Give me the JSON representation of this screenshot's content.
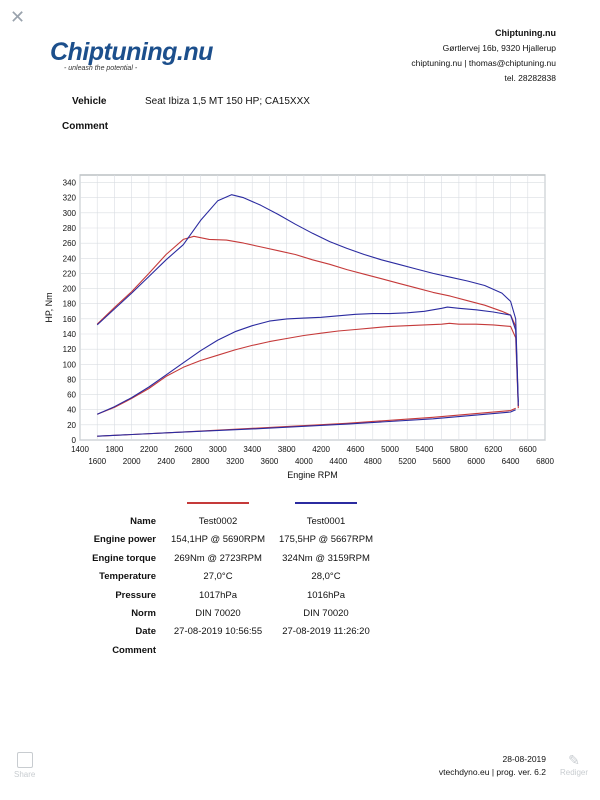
{
  "header": {
    "logo_text": "Chiptuning.nu",
    "logo_tagline": "- unleash the potential -",
    "company_name": "Chiptuning.nu",
    "address": "Gørtlervej 16b, 9320 Hjallerup",
    "web_email": "chiptuning.nu | thomas@chiptuning.nu",
    "phone": "tel. 28282838"
  },
  "vehicle": {
    "label": "Vehicle",
    "value": "Seat Ibiza 1,5 MT 150 HP; CA15XXX"
  },
  "comment_top": {
    "label": "Comment"
  },
  "chart_data": {
    "type": "line",
    "xlabel": "Engine RPM",
    "ylabel": "HP, Nm",
    "xlim": [
      1400,
      6800
    ],
    "ylim": [
      0,
      350
    ],
    "x_ticks_top": [
      "1400",
      "1800",
      "2200",
      "2600",
      "3000",
      "3400",
      "3800",
      "4200",
      "4600",
      "5000",
      "5400",
      "5800",
      "6200",
      "6600"
    ],
    "x_ticks_bottom": [
      "1600",
      "2000",
      "2400",
      "2800",
      "3200",
      "3600",
      "4000",
      "4400",
      "4800",
      "5200",
      "5600",
      "6000",
      "6400",
      "6800"
    ],
    "y_ticks": [
      "0",
      "20",
      "40",
      "60",
      "80",
      "100",
      "120",
      "140",
      "160",
      "180",
      "200",
      "220",
      "240",
      "260",
      "280",
      "300",
      "320",
      "340"
    ],
    "grid": true,
    "colors": {
      "test0002": "#c53a3a",
      "test0001": "#2b2ba0"
    },
    "series": [
      {
        "name": "Test0002",
        "quantity": "torque",
        "x": [
          1600,
          1800,
          2000,
          2200,
          2400,
          2600,
          2723,
          2900,
          3100,
          3300,
          3500,
          3700,
          3900,
          4100,
          4300,
          4500,
          4700,
          4900,
          5100,
          5300,
          5500,
          5700,
          5900,
          6100,
          6300,
          6400,
          6460,
          6490
        ],
        "y": [
          153,
          175,
          196,
          220,
          245,
          265,
          269,
          265,
          264,
          260,
          255,
          250,
          245,
          238,
          232,
          225,
          219,
          213,
          207,
          201,
          195,
          190,
          184,
          178,
          170,
          165,
          150,
          45
        ]
      },
      {
        "name": "Test0002",
        "quantity": "power",
        "x": [
          1600,
          1800,
          2000,
          2200,
          2400,
          2600,
          2800,
          3000,
          3200,
          3400,
          3600,
          3800,
          4000,
          4200,
          4400,
          4600,
          4800,
          5000,
          5200,
          5400,
          5600,
          5690,
          5800,
          6000,
          6200,
          6400,
          6460,
          6490
        ],
        "y": [
          34,
          43,
          55,
          68,
          84,
          96,
          105,
          112,
          119,
          125,
          130,
          134,
          138,
          141,
          144,
          146,
          148,
          150,
          151,
          152,
          153,
          154.1,
          153,
          153,
          152,
          150,
          135,
          42
        ]
      },
      {
        "name": "Test0002",
        "quantity": "loss",
        "x": [
          1600,
          2500,
          3500,
          4500,
          5500,
          6400,
          6460
        ],
        "y": [
          5,
          10,
          16,
          22,
          30,
          39,
          42
        ]
      },
      {
        "name": "Test0001",
        "quantity": "torque",
        "x": [
          1600,
          1800,
          2000,
          2200,
          2400,
          2600,
          2800,
          3000,
          3159,
          3300,
          3500,
          3700,
          3900,
          4100,
          4300,
          4500,
          4700,
          4900,
          5100,
          5300,
          5500,
          5700,
          5900,
          6100,
          6300,
          6400,
          6460,
          6490
        ],
        "y": [
          152,
          173,
          194,
          216,
          238,
          258,
          290,
          316,
          324,
          320,
          310,
          298,
          285,
          273,
          262,
          253,
          245,
          238,
          232,
          226,
          220,
          215,
          210,
          204,
          194,
          183,
          160,
          50
        ]
      },
      {
        "name": "Test0001",
        "quantity": "power",
        "x": [
          1600,
          1800,
          2000,
          2200,
          2400,
          2600,
          2800,
          3000,
          3200,
          3400,
          3600,
          3800,
          4000,
          4200,
          4400,
          4600,
          4800,
          5000,
          5200,
          5400,
          5600,
          5667,
          5800,
          6000,
          6200,
          6400,
          6460,
          6490
        ],
        "y": [
          34,
          44,
          56,
          70,
          86,
          102,
          118,
          132,
          143,
          151,
          157,
          160,
          161,
          162,
          164,
          166,
          167,
          167,
          168,
          170,
          174,
          175.5,
          174,
          172,
          169,
          165,
          145,
          45
        ]
      },
      {
        "name": "Test0001",
        "quantity": "loss",
        "x": [
          1600,
          2500,
          3500,
          4500,
          5500,
          6400,
          6460
        ],
        "y": [
          5,
          10,
          15,
          21,
          28,
          37,
          40
        ]
      }
    ]
  },
  "results": {
    "rows": [
      {
        "label": "Name",
        "v1": "Test0002",
        "v2": "Test0001"
      },
      {
        "label": "Engine power",
        "v1": "154,1HP @  5690RPM",
        "v2": "175,5HP @  5667RPM"
      },
      {
        "label": "Engine torque",
        "v1": "269Nm @ 2723RPM",
        "v2": "324Nm @ 3159RPM"
      },
      {
        "label": "Temperature",
        "v1": "27,0°C",
        "v2": "28,0°C"
      },
      {
        "label": "Pressure",
        "v1": "1017hPa",
        "v2": "1016hPa"
      },
      {
        "label": "Norm",
        "v1": "DIN 70020",
        "v2": "DIN 70020"
      },
      {
        "label": "Date",
        "v1": "27-08-2019 10:56:55",
        "v2": "27-08-2019 11:26:20"
      },
      {
        "label": "Comment",
        "v1": "",
        "v2": ""
      }
    ]
  },
  "footer": {
    "date": "28-08-2019",
    "software": "vtechdyno.eu | prog. ver. 6.2"
  },
  "toolbar": {
    "close_glyph": "✕",
    "share_label": "Share",
    "edit_label": "Rediger"
  },
  "icons": {
    "close": "close-icon",
    "share": "share-icon",
    "edit": "pencil-icon"
  }
}
